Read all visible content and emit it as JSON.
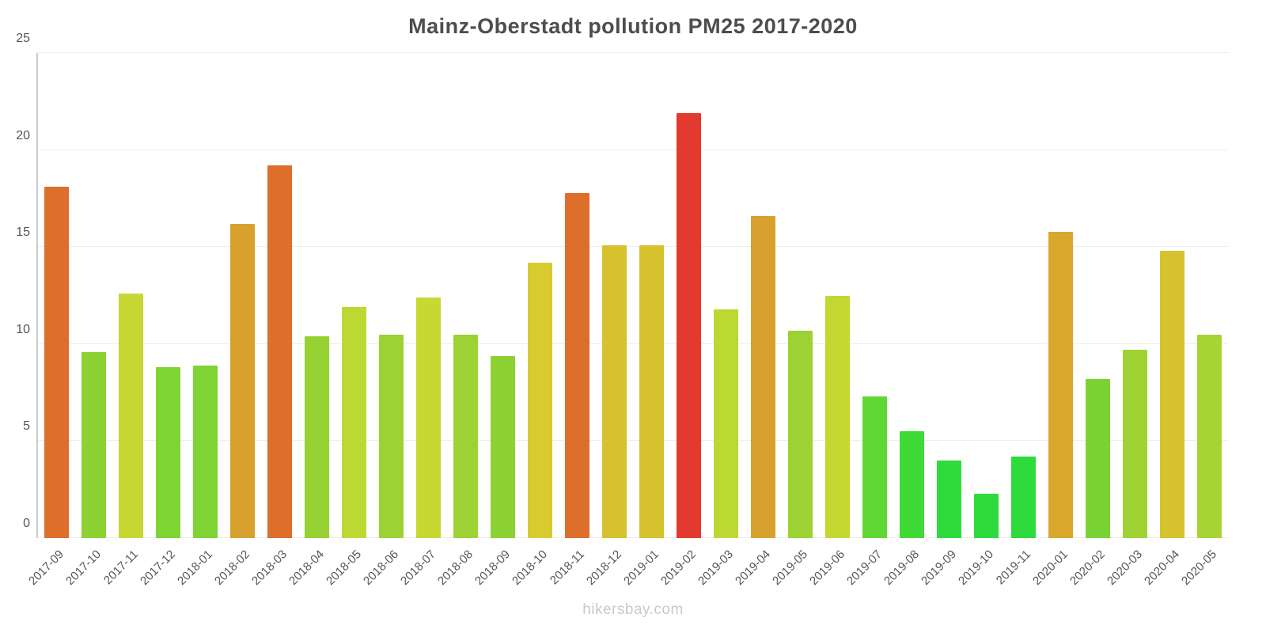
{
  "title": "Mainz-Oberstadt pollution PM25 2017-2020",
  "footer": "hikersbay.com",
  "chart_data": {
    "type": "bar",
    "title": "Mainz-Oberstadt pollution PM25 2017-2020",
    "xlabel": "",
    "ylabel": "",
    "ylim": [
      0,
      25
    ],
    "yticks": [
      0,
      5,
      10,
      15,
      20,
      25
    ],
    "grid": true,
    "legend": "none",
    "categories": [
      "2017-09",
      "2017-10",
      "2017-11",
      "2017-12",
      "2018-01",
      "2018-02",
      "2018-03",
      "2018-04",
      "2018-05",
      "2018-06",
      "2018-07",
      "2018-08",
      "2018-09",
      "2018-10",
      "2018-11",
      "2018-12",
      "2019-01",
      "2019-02",
      "2019-03",
      "2019-04",
      "2019-05",
      "2019-06",
      "2019-07",
      "2019-08",
      "2019-09",
      "2019-10",
      "2019-11",
      "2020-01",
      "2020-02",
      "2020-03",
      "2020-04",
      "2020-05"
    ],
    "values": [
      18.1,
      9.6,
      12.6,
      8.8,
      8.9,
      16.2,
      19.2,
      10.4,
      11.9,
      10.5,
      12.4,
      10.5,
      9.4,
      14.2,
      17.8,
      15.1,
      15.1,
      21.9,
      11.8,
      16.6,
      10.7,
      12.5,
      7.3,
      5.5,
      4.0,
      2.3,
      4.2,
      15.8,
      8.2,
      9.7,
      14.8,
      10.5
    ],
    "colors": [
      "#dd6e2c",
      "#8ed133",
      "#c6d831",
      "#7ed433",
      "#7ed433",
      "#d8a02c",
      "#dd6e2c",
      "#97d233",
      "#bcd832",
      "#9cd233",
      "#c6d831",
      "#9cd233",
      "#8ed133",
      "#d7cb30",
      "#dd6e2c",
      "#d6c22e",
      "#d6c22e",
      "#e23a2e",
      "#bcd832",
      "#d8a02c",
      "#9cd233",
      "#c4d831",
      "#5fd834",
      "#40da36",
      "#2edb3d",
      "#2edb3d",
      "#2edb3d",
      "#d9a72c",
      "#79d433",
      "#a0d233",
      "#d6c22e",
      "#a6d432"
    ]
  }
}
